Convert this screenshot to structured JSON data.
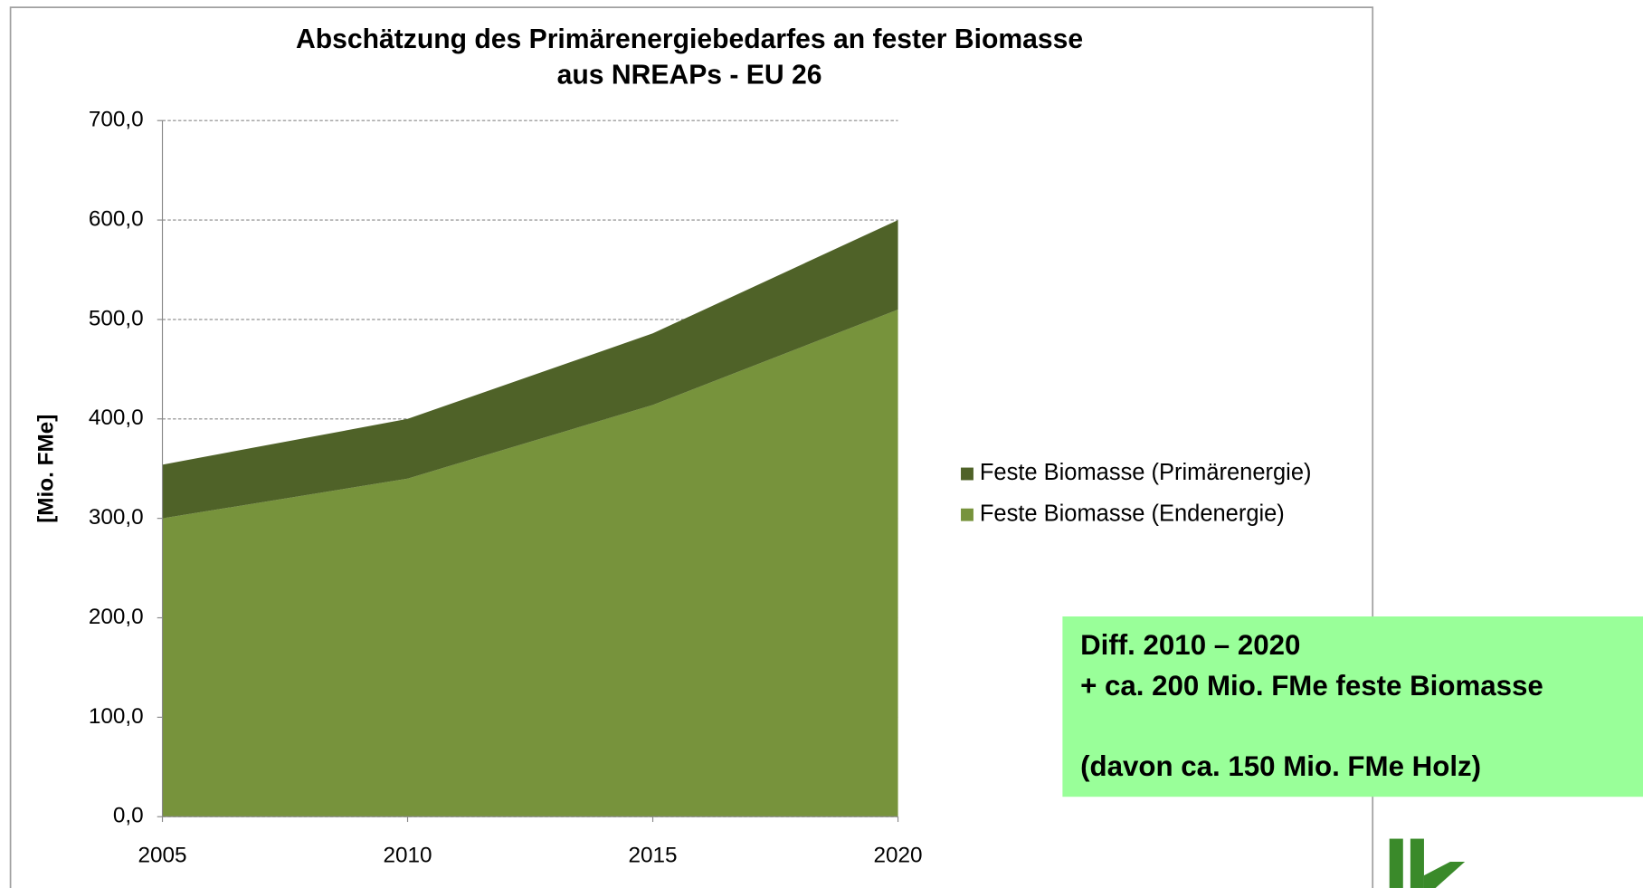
{
  "chart_data": {
    "type": "area",
    "title": [
      "Abschätzung des Primärenergiebedarfes an fester Biomasse",
      "aus NREAPs - EU 26"
    ],
    "y_label": "[Mio. FMe]",
    "x": [
      2005,
      2010,
      2015,
      2020
    ],
    "xlim": [
      2005,
      2020
    ],
    "xticks": [
      2005,
      2010,
      2015,
      2020
    ],
    "ylim": [
      0,
      700
    ],
    "yticks": [
      {
        "value": 0,
        "label": "0,0"
      },
      {
        "value": 100,
        "label": "100,0"
      },
      {
        "value": 200,
        "label": "200,0"
      },
      {
        "value": 300,
        "label": "300,0"
      },
      {
        "value": 400,
        "label": "400,0"
      },
      {
        "value": 500,
        "label": "500,0"
      },
      {
        "value": 600,
        "label": "600,0"
      },
      {
        "value": 700,
        "label": "700,0"
      }
    ],
    "grid": true,
    "stacked": true,
    "series": [
      {
        "name": "Feste Biomasse (Endenergie)",
        "color": "#77933c",
        "values": [
          300,
          340,
          414,
          510
        ]
      },
      {
        "name": "Feste Biomasse (Primärenergie)",
        "color": "#4f6228",
        "values": [
          54,
          60,
          72,
          90
        ]
      }
    ],
    "annotations": [
      "Diff. 2010 – 2020",
      "+ ca. 200 Mio. FMe feste Biomasse",
      "(davon ca. 150 Mio. FMe Holz)"
    ]
  }
}
